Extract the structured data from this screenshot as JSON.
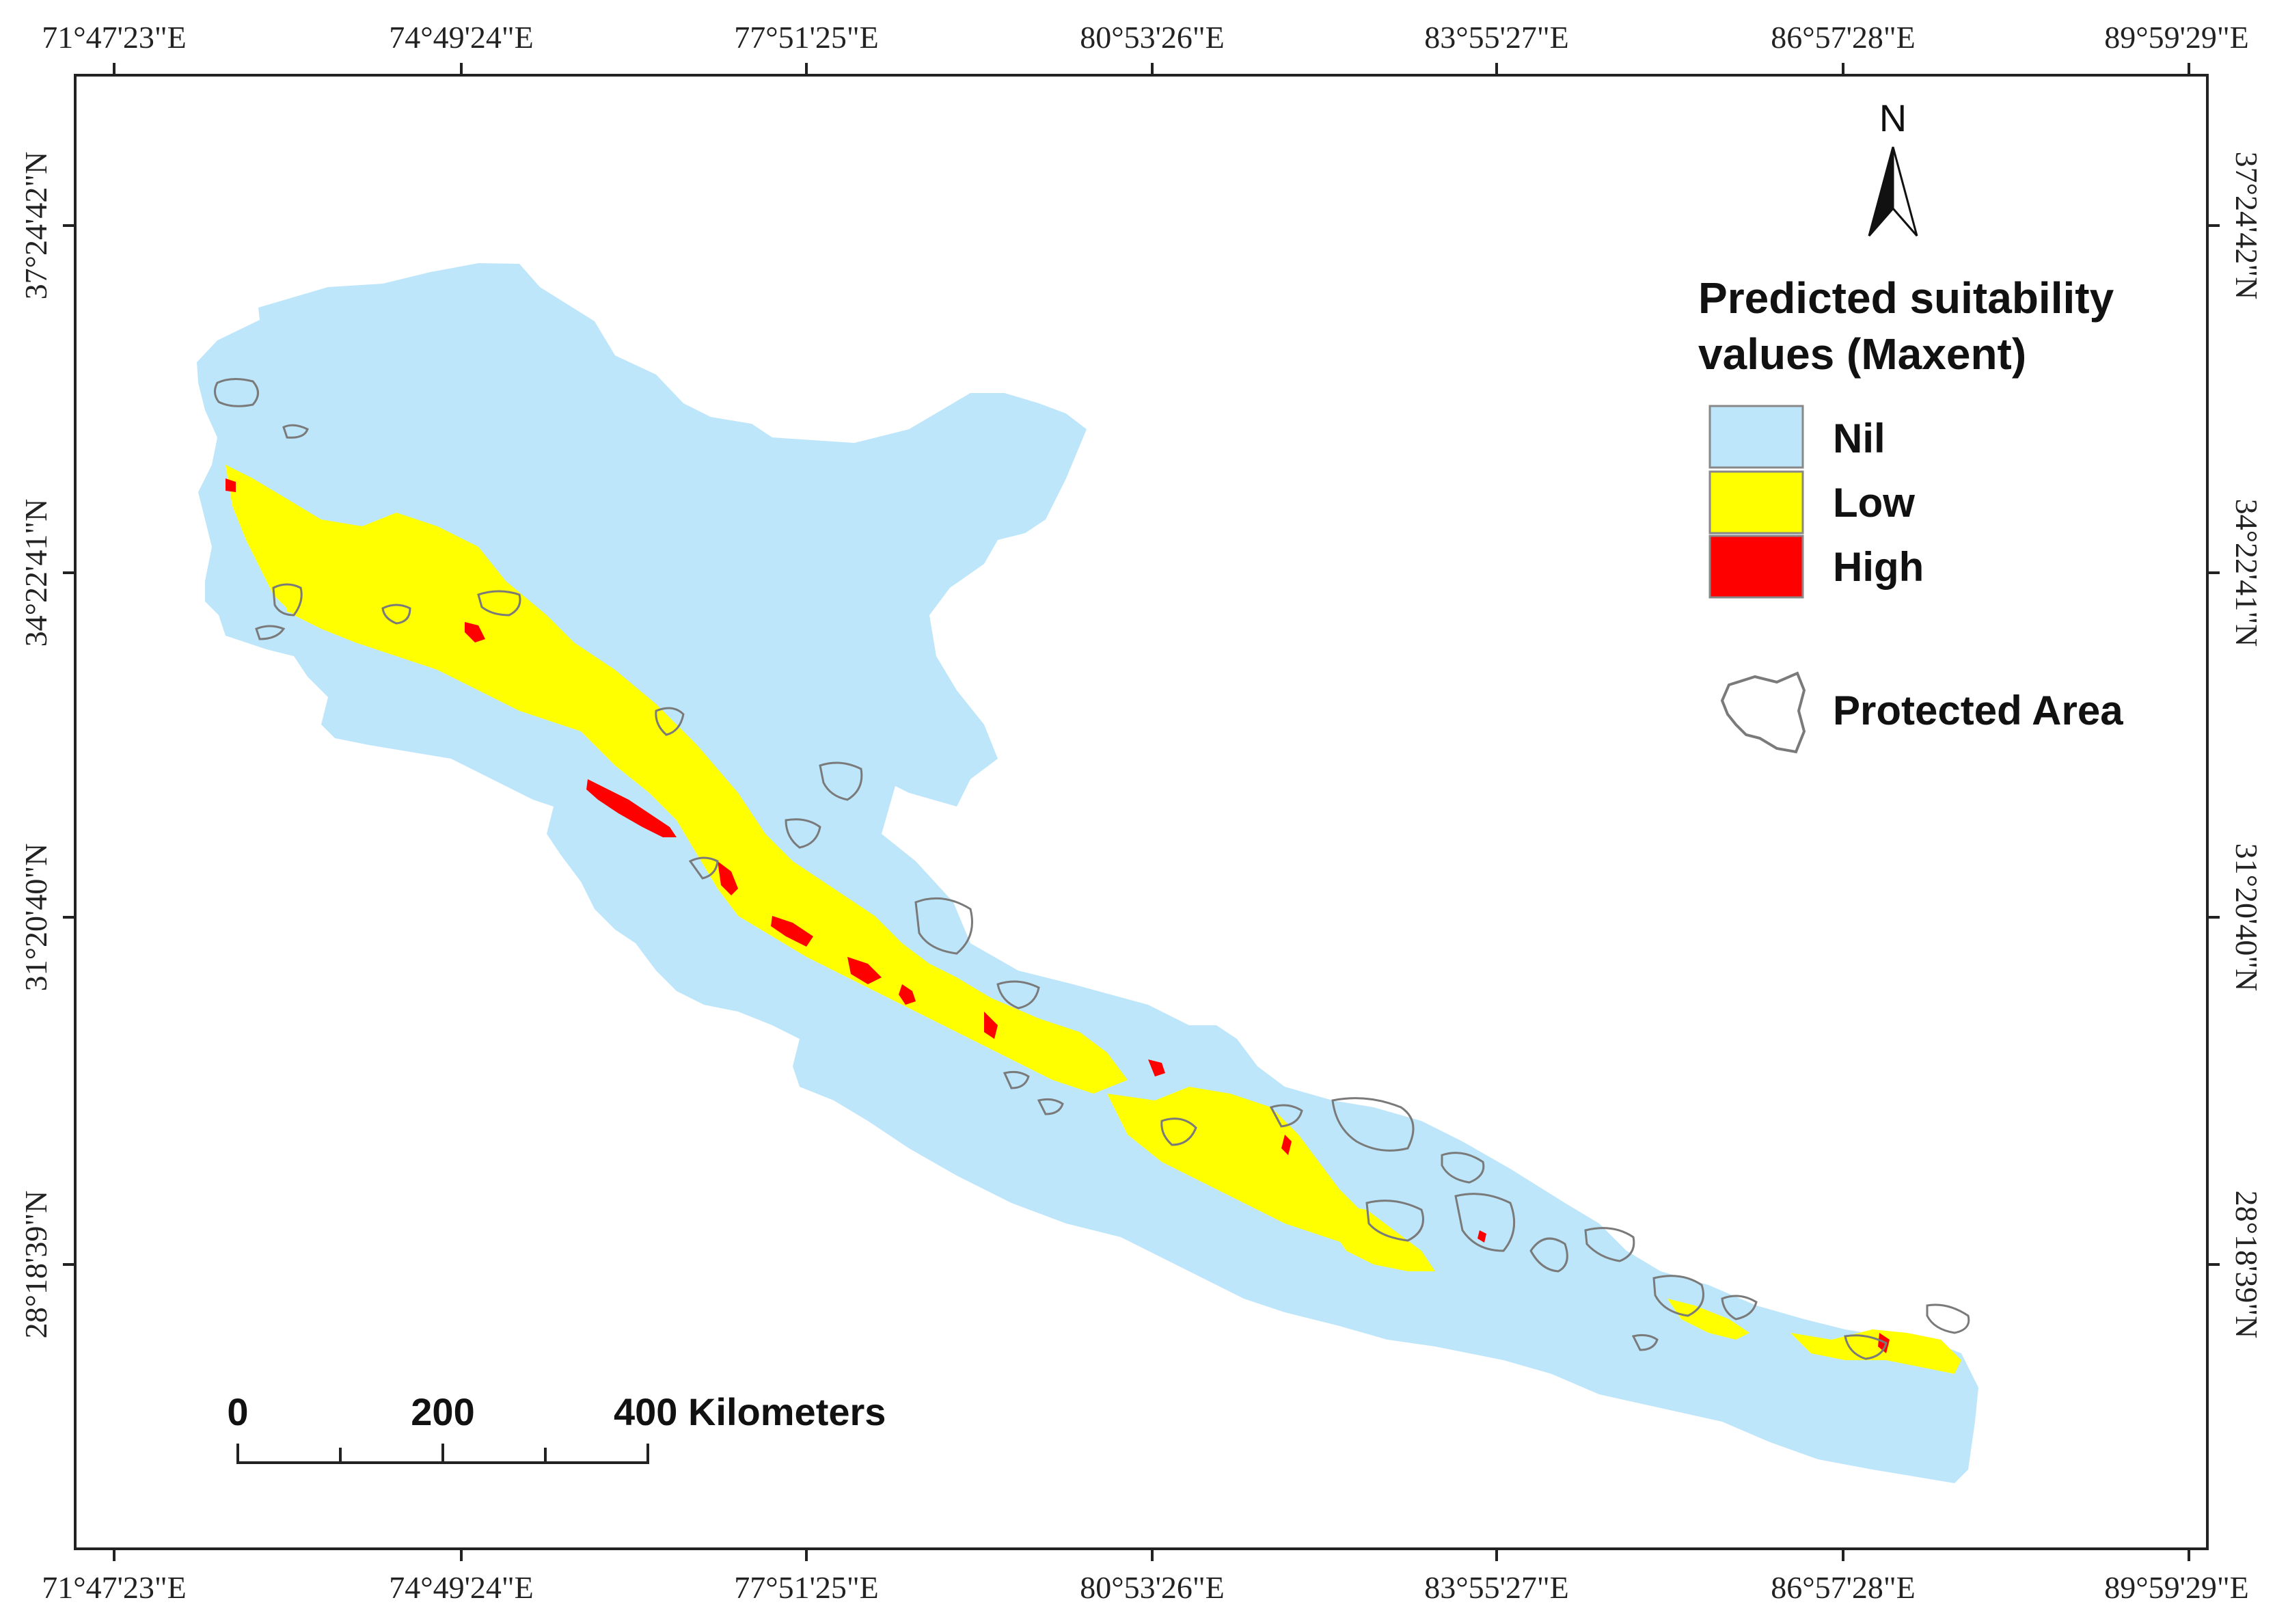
{
  "map": {
    "top_ticks": [
      "71°47'23\"E",
      "74°49'24\"E",
      "77°51'25\"E",
      "80°53'26\"E",
      "83°55'27\"E",
      "86°57'28\"E",
      "89°59'29\"E"
    ],
    "bottom_ticks": [
      "71°47'23\"E",
      "74°49'24\"E",
      "77°51'25\"E",
      "80°53'26\"E",
      "83°55'27\"E",
      "86°57'28\"E",
      "89°59'29\"E"
    ],
    "left_ticks": [
      "37°24'42\"N",
      "34°22'41\"N",
      "31°20'40\"N",
      "28°18'39\"N"
    ],
    "right_ticks": [
      "37°24'42\"N",
      "34°22'41\"N",
      "31°20'40\"N",
      "28°18'39\"N"
    ]
  },
  "north_arrow": {
    "label": "N"
  },
  "legend": {
    "title_line1": "Predicted suitability",
    "title_line2": "values (Maxent)",
    "items": [
      {
        "label": "Nil",
        "color": "#bee6fa"
      },
      {
        "label": "Low",
        "color": "#ffff00"
      },
      {
        "label": "High",
        "color": "#ff0000"
      }
    ],
    "protected_label": "Protected Area"
  },
  "scale_bar": {
    "label_0": "0",
    "label_200": "200",
    "label_400": "400 Kilometers"
  }
}
